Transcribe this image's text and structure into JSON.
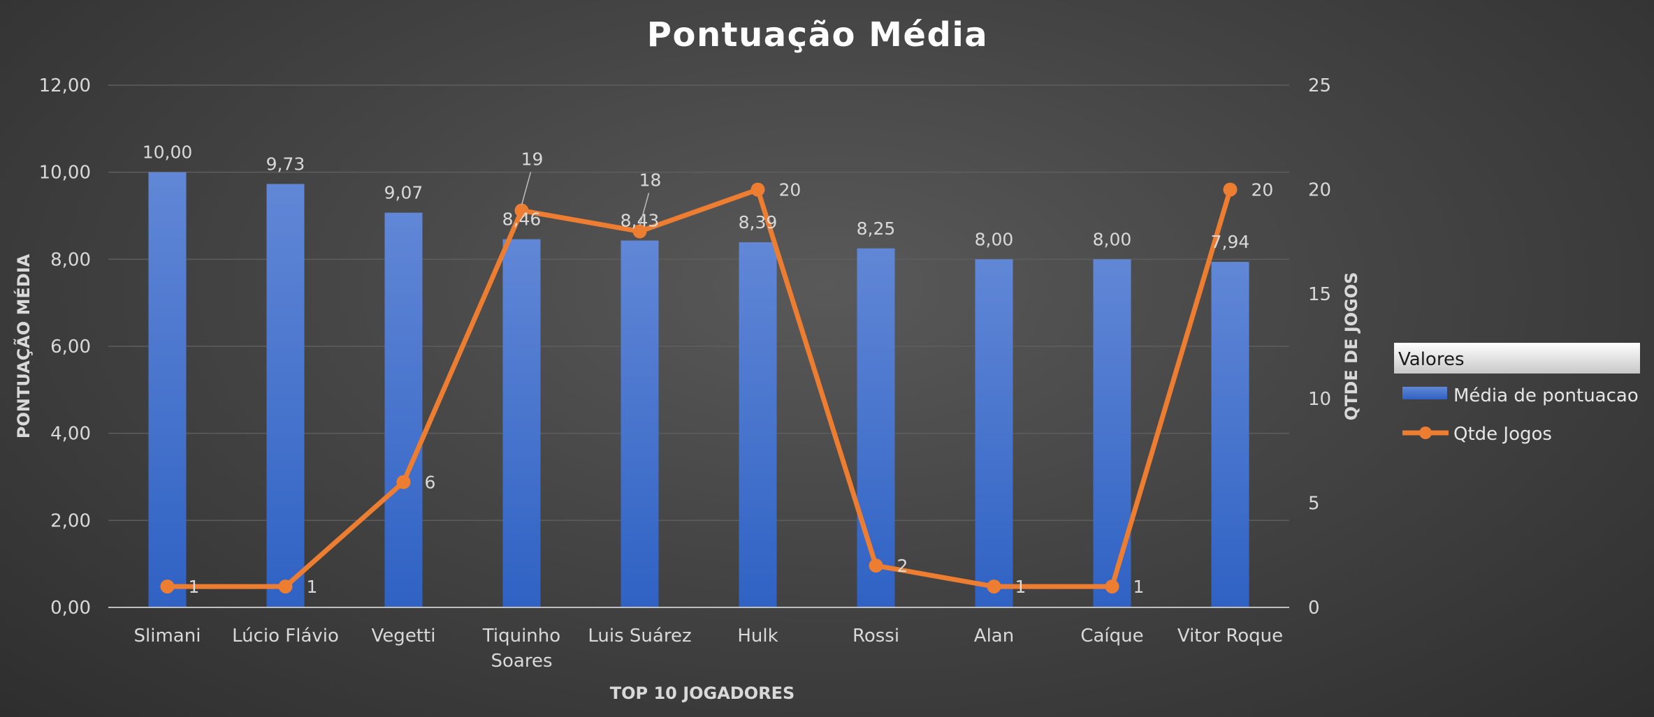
{
  "chart_data": {
    "type": "bar",
    "title": "Pontuação Média",
    "xlabel": "TOP 10 JOGADORES",
    "ylabel": "PONTUAÇÃO MÉDIA",
    "y2label": "QTDE DE JOGOS",
    "categories": [
      [
        "Slimani"
      ],
      [
        "Lúcio Flávio"
      ],
      [
        "Vegetti"
      ],
      [
        "Tiquinho",
        "Soares"
      ],
      [
        "Luis Suárez"
      ],
      [
        "Hulk"
      ],
      [
        "Rossi"
      ],
      [
        "Alan"
      ],
      [
        "Caíque"
      ],
      [
        "Vitor Roque"
      ]
    ],
    "series": [
      {
        "name": "Média de pontuacao",
        "type": "bar",
        "axis": "left",
        "color": "#4472c4",
        "values": [
          10.0,
          9.73,
          9.07,
          8.46,
          8.43,
          8.39,
          8.25,
          8.0,
          8.0,
          7.94
        ],
        "labels": [
          "10,00",
          "9,73",
          "9,07",
          "8,46",
          "8,43",
          "8,39",
          "8,25",
          "8,00",
          "8,00",
          "7,94"
        ]
      },
      {
        "name": "Qtde Jogos",
        "type": "line",
        "axis": "right",
        "color": "#ed7d31",
        "values": [
          1,
          1,
          6,
          19,
          18,
          20,
          2,
          1,
          1,
          20
        ],
        "labels": [
          "1",
          "1",
          "6",
          "19",
          "18",
          "20",
          "2",
          "1",
          "1",
          "20"
        ]
      }
    ],
    "ylim": [
      0,
      12
    ],
    "yticks": [
      "0,00",
      "2,00",
      "4,00",
      "6,00",
      "8,00",
      "10,00",
      "12,00"
    ],
    "y2lim": [
      0,
      25
    ],
    "y2ticks": [
      "0",
      "5",
      "10",
      "15",
      "20",
      "25"
    ],
    "grid": true,
    "legend": {
      "title": "Valores",
      "position": "right"
    }
  }
}
